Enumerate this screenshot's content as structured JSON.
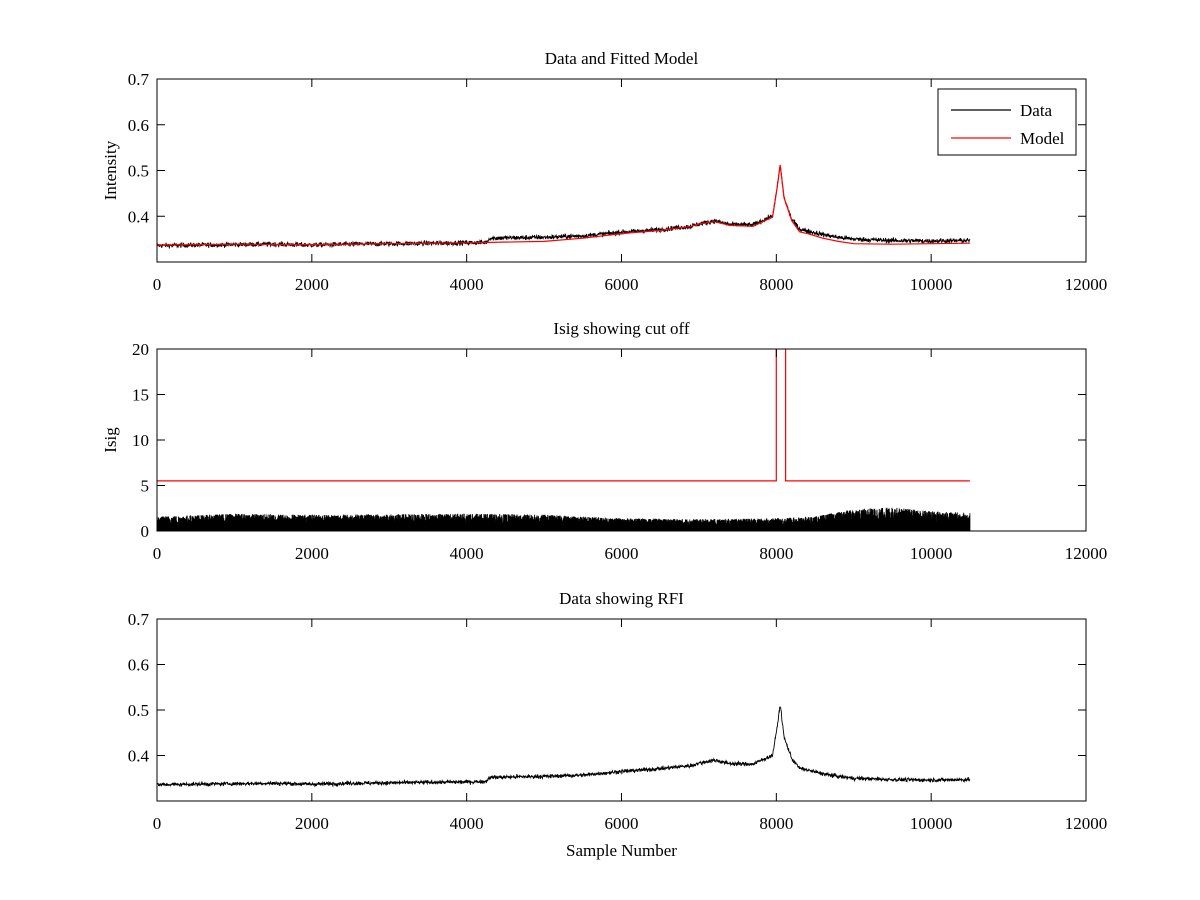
{
  "chart_data": [
    {
      "type": "line",
      "title": "Data and Fitted Model",
      "xlabel": "",
      "ylabel": "Intensity",
      "xlim": [
        0,
        12000
      ],
      "ylim": [
        0.3,
        0.7
      ],
      "xticks": [
        0,
        2000,
        4000,
        6000,
        8000,
        10000,
        12000
      ],
      "yticks": [
        0.4,
        0.5,
        0.6,
        0.7
      ],
      "xtick_labels": [
        "0",
        "2000",
        "4000",
        "6000",
        "8000",
        "10000",
        "12000"
      ],
      "ytick_labels": [
        "0.4",
        "0.5",
        "0.6",
        "0.7"
      ],
      "grid": false,
      "legend": {
        "position": "top-right",
        "entries": [
          "Data",
          "Model"
        ]
      },
      "series": [
        {
          "name": "Data",
          "color": "#000000",
          "noise": 0.005,
          "x": [
            0,
            500,
            1000,
            1500,
            2000,
            2500,
            3000,
            3500,
            4000,
            4250,
            4300,
            4600,
            5000,
            5500,
            6000,
            6500,
            6900,
            7000,
            7200,
            7400,
            7700,
            7850,
            7950,
            8000,
            8050,
            8100,
            8200,
            8300,
            8400,
            8600,
            8800,
            9000,
            9500,
            10000,
            10500
          ],
          "y": [
            0.336,
            0.337,
            0.338,
            0.339,
            0.337,
            0.339,
            0.34,
            0.341,
            0.342,
            0.343,
            0.352,
            0.353,
            0.354,
            0.357,
            0.365,
            0.371,
            0.378,
            0.383,
            0.39,
            0.382,
            0.381,
            0.393,
            0.4,
            0.45,
            0.512,
            0.44,
            0.393,
            0.372,
            0.368,
            0.36,
            0.354,
            0.35,
            0.347,
            0.346,
            0.347
          ]
        },
        {
          "name": "Model",
          "color": "#ff0000",
          "noise": 0,
          "x": [
            0,
            1000,
            2000,
            3000,
            4000,
            5000,
            5500,
            6000,
            6500,
            6900,
            7000,
            7200,
            7400,
            7700,
            7850,
            7950,
            8000,
            8050,
            8100,
            8200,
            8300,
            8400,
            8600,
            8800,
            9000,
            9500,
            10000,
            10500
          ],
          "y": [
            0.337,
            0.339,
            0.338,
            0.34,
            0.342,
            0.345,
            0.352,
            0.362,
            0.369,
            0.378,
            0.383,
            0.388,
            0.38,
            0.378,
            0.39,
            0.398,
            0.45,
            0.512,
            0.44,
            0.39,
            0.366,
            0.362,
            0.352,
            0.345,
            0.34,
            0.339,
            0.34,
            0.341
          ]
        }
      ]
    },
    {
      "type": "line",
      "title": "Isig showing cut off",
      "xlabel": "",
      "ylabel": "Isig",
      "xlim": [
        0,
        12000
      ],
      "ylim": [
        0,
        20
      ],
      "xticks": [
        0,
        2000,
        4000,
        6000,
        8000,
        10000,
        12000
      ],
      "yticks": [
        0,
        5,
        10,
        15,
        20
      ],
      "xtick_labels": [
        "0",
        "2000",
        "4000",
        "6000",
        "8000",
        "10000",
        "12000"
      ],
      "ytick_labels": [
        "0",
        "5",
        "10",
        "15",
        "20"
      ],
      "grid": false,
      "series": [
        {
          "color": "#000000",
          "noise_band": true,
          "x": [
            0,
            1000,
            2000,
            4000,
            5000,
            6000,
            7000,
            8000,
            8500,
            9000,
            9500,
            10000,
            10500
          ],
          "y": [
            1.6,
            1.9,
            1.8,
            1.9,
            1.8,
            1.4,
            1.3,
            1.4,
            1.6,
            2.4,
            2.6,
            2.2,
            2.0
          ]
        },
        {
          "color": "#ff0000",
          "x": [
            0,
            8000,
            8000,
            8120,
            8120,
            10500
          ],
          "y": [
            5.5,
            5.5,
            25,
            25,
            5.5,
            5.5
          ]
        }
      ]
    },
    {
      "type": "line",
      "title": "Data showing RFI",
      "xlabel": "Sample Number",
      "ylabel": "",
      "xlim": [
        0,
        12000
      ],
      "ylim": [
        0.3,
        0.7
      ],
      "xticks": [
        0,
        2000,
        4000,
        6000,
        8000,
        10000,
        12000
      ],
      "yticks": [
        0.4,
        0.5,
        0.6,
        0.7
      ],
      "xtick_labels": [
        "0",
        "2000",
        "4000",
        "6000",
        "8000",
        "10000",
        "12000"
      ],
      "ytick_labels": [
        "0.4",
        "0.5",
        "0.6",
        "0.7"
      ],
      "grid": false,
      "series": [
        {
          "color": "#000000",
          "noise": 0.004,
          "x": [
            0,
            500,
            1000,
            1500,
            2000,
            2500,
            3000,
            3500,
            4000,
            4250,
            4300,
            4600,
            5000,
            5500,
            6000,
            6500,
            6900,
            7000,
            7200,
            7400,
            7700,
            7850,
            7950,
            8000,
            8050,
            8100,
            8200,
            8300,
            8400,
            8600,
            8800,
            9000,
            9500,
            10000,
            10500
          ],
          "y": [
            0.336,
            0.337,
            0.338,
            0.339,
            0.337,
            0.339,
            0.34,
            0.341,
            0.342,
            0.343,
            0.352,
            0.353,
            0.354,
            0.357,
            0.365,
            0.371,
            0.378,
            0.383,
            0.39,
            0.382,
            0.381,
            0.393,
            0.4,
            0.45,
            0.512,
            0.44,
            0.393,
            0.372,
            0.368,
            0.36,
            0.354,
            0.35,
            0.347,
            0.346,
            0.347
          ]
        }
      ]
    }
  ]
}
